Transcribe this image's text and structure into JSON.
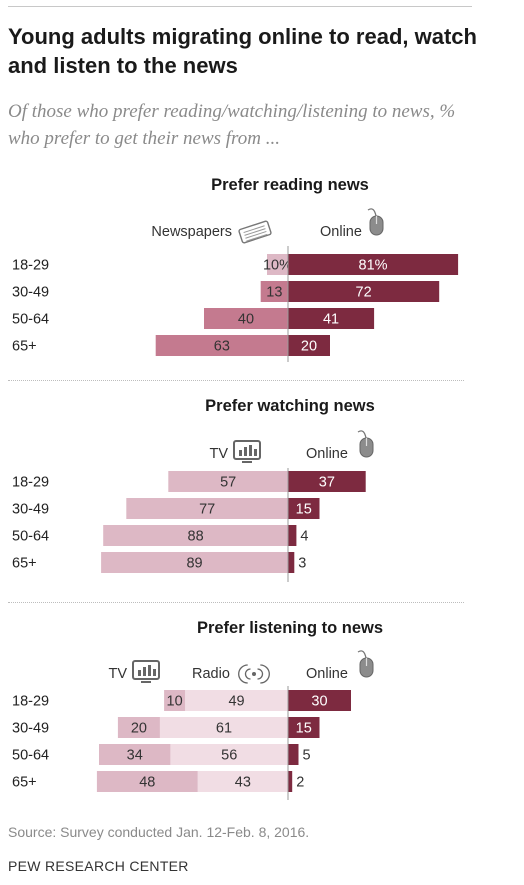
{
  "title": "Young adults migrating online to read, watch and listen to the news",
  "subtitle": "Of those who prefer reading/watching/listening to news, % who prefer to get their news from ...",
  "source": "Source: Survey conducted Jan. 12-Feb. 8, 2016.",
  "organization": "PEW RESEARCH CENTER",
  "colors": {
    "light": "#ddb8c5",
    "medium": "#c47a8f",
    "lightest": "#f1dde4",
    "dark": "#7d2a40",
    "dark_label": "#ffffff",
    "light_label": "#333333"
  },
  "chart_data": [
    {
      "type": "bar",
      "title": "Prefer reading news",
      "categories": [
        "18-29",
        "30-49",
        "50-64",
        "65+"
      ],
      "series": [
        {
          "name": "Newspapers",
          "icon": "newspaper-icon",
          "values": [
            10,
            13,
            40,
            63
          ],
          "labels": [
            "10%",
            "13",
            "40",
            "63"
          ]
        },
        {
          "name": "Online",
          "icon": "mouse-icon",
          "values": [
            81,
            72,
            41,
            20
          ],
          "labels": [
            "81%",
            "72",
            "41",
            "20"
          ]
        }
      ]
    },
    {
      "type": "bar",
      "title": "Prefer watching news",
      "categories": [
        "18-29",
        "30-49",
        "50-64",
        "65+"
      ],
      "series": [
        {
          "name": "TV",
          "icon": "tv-icon",
          "values": [
            57,
            77,
            88,
            89
          ],
          "labels": [
            "57",
            "77",
            "88",
            "89"
          ]
        },
        {
          "name": "Online",
          "icon": "mouse-icon",
          "values": [
            37,
            15,
            4,
            3
          ],
          "labels": [
            "37",
            "15",
            "4",
            "3"
          ]
        }
      ]
    },
    {
      "type": "bar",
      "title": "Prefer listening to news",
      "categories": [
        "18-29",
        "30-49",
        "50-64",
        "65+"
      ],
      "series": [
        {
          "name": "TV",
          "icon": "tv-icon",
          "values": [
            10,
            20,
            34,
            48
          ],
          "labels": [
            "10",
            "20",
            "34",
            "48"
          ]
        },
        {
          "name": "Radio",
          "icon": "radio-icon",
          "values": [
            49,
            61,
            56,
            43
          ],
          "labels": [
            "49",
            "61",
            "56",
            "43"
          ]
        },
        {
          "name": "Online",
          "icon": "mouse-icon",
          "values": [
            30,
            15,
            5,
            2
          ],
          "labels": [
            "30",
            "15",
            "5",
            "2"
          ]
        }
      ]
    }
  ]
}
